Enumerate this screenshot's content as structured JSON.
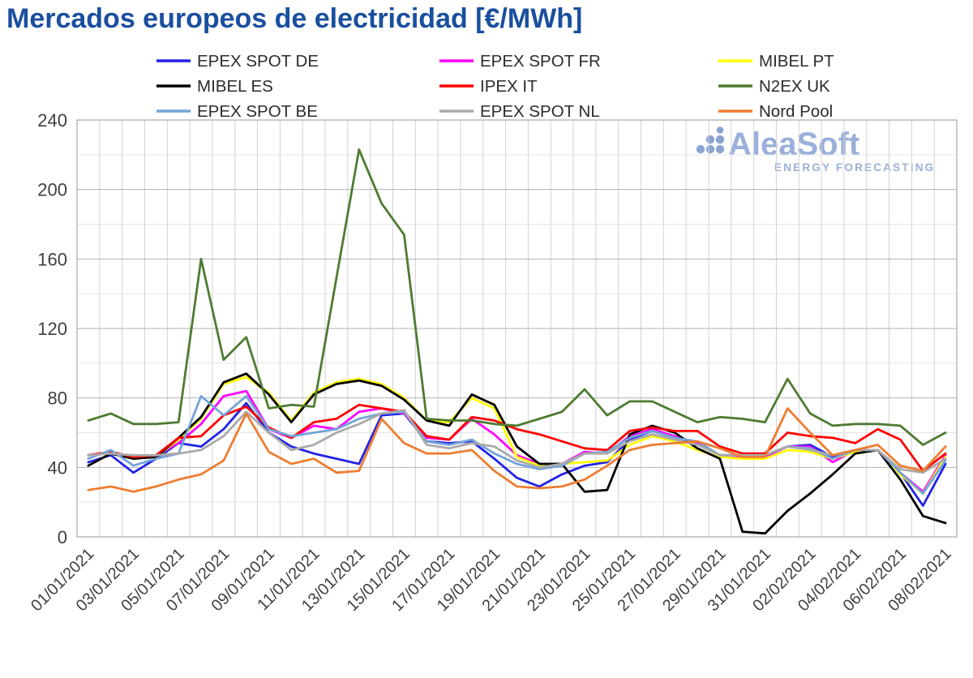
{
  "title": "Mercados europeos de electricidad [€/MWh]",
  "watermark": {
    "brand": "AleaSoft",
    "tagline": "ENERGY FORECASTING",
    "text_color": "#9ab0da",
    "dot_color": "#8aa3d2"
  },
  "axis_style": {
    "tick_color": "#3f3f3f",
    "major_grid_color": "#b2b2b2",
    "minor_grid_color": "#e4e4e4",
    "day_grid_color": "#d2d2d2",
    "border_color": "#a6a6a6"
  },
  "legend": {
    "text_color": "#2b2b2b",
    "order": [
      "EPEX SPOT DE",
      "EPEX SPOT FR",
      "MIBEL PT",
      "MIBEL ES",
      "IPEX IT",
      "N2EX UK",
      "EPEX SPOT BE",
      "EPEX SPOT NL",
      "Nord Pool"
    ]
  },
  "chart_data": {
    "type": "line",
    "title": "Mercados europeos de electricidad [€/MWh]",
    "xlabel": "",
    "ylabel": "",
    "ylim": [
      0,
      240
    ],
    "ytick_step": 40,
    "yticks": [
      0,
      40,
      80,
      120,
      160,
      200,
      240
    ],
    "grid": "minor horizontal every 20, vertical every day",
    "legend_position": "top, 3 columns",
    "x": [
      "01/01/2021",
      "02/01/2021",
      "03/01/2021",
      "04/01/2021",
      "05/01/2021",
      "06/01/2021",
      "07/01/2021",
      "08/01/2021",
      "09/01/2021",
      "10/01/2021",
      "11/01/2021",
      "12/01/2021",
      "13/01/2021",
      "14/01/2021",
      "15/01/2021",
      "16/01/2021",
      "17/01/2021",
      "18/01/2021",
      "19/01/2021",
      "20/01/2021",
      "21/01/2021",
      "22/01/2021",
      "23/01/2021",
      "24/01/2021",
      "25/01/2021",
      "26/01/2021",
      "27/01/2021",
      "28/01/2021",
      "29/01/2021",
      "30/01/2021",
      "31/01/2021",
      "01/02/2021",
      "02/02/2021",
      "03/02/2021",
      "04/02/2021",
      "05/02/2021",
      "06/02/2021",
      "07/02/2021",
      "08/02/2021"
    ],
    "x_tick_labels": [
      "01/01/2021",
      "03/01/2021",
      "05/01/2021",
      "07/01/2021",
      "09/01/2021",
      "11/01/2021",
      "13/01/2021",
      "15/01/2021",
      "17/01/2021",
      "19/01/2021",
      "21/01/2021",
      "23/01/2021",
      "25/01/2021",
      "27/01/2021",
      "29/01/2021",
      "31/01/2021",
      "02/02/2021",
      "04/02/2021",
      "06/02/2021",
      "08/02/2021"
    ],
    "series": [
      {
        "name": "EPEX SPOT DE",
        "color": "#2222e8",
        "values": [
          43,
          47,
          37,
          45,
          54,
          52,
          62,
          77,
          60,
          52,
          48,
          45,
          42,
          70,
          71,
          55,
          54,
          55,
          45,
          34,
          29,
          36,
          41,
          43,
          56,
          61,
          57,
          54,
          47,
          47,
          47,
          52,
          53,
          46,
          50,
          50,
          37,
          18,
          42
        ]
      },
      {
        "name": "EPEX SPOT FR",
        "color": "#ff00ff",
        "values": [
          47,
          49,
          46,
          47,
          54,
          65,
          81,
          84,
          62,
          57,
          64,
          62,
          72,
          74,
          71,
          57,
          56,
          68,
          59,
          47,
          42,
          42,
          49,
          48,
          58,
          62,
          58,
          54,
          47,
          46,
          46,
          52,
          52,
          43,
          50,
          50,
          37,
          26,
          47
        ]
      },
      {
        "name": "MIBEL PT",
        "color": "#ffff00",
        "values": [
          41,
          48,
          45,
          46,
          56,
          68,
          88,
          92,
          83,
          67,
          83,
          89,
          91,
          88,
          80,
          67,
          66,
          80,
          74,
          46,
          41,
          42,
          43,
          44,
          53,
          58,
          55,
          50,
          46,
          45,
          45,
          50,
          49,
          45,
          49,
          50,
          36,
          25,
          46
        ]
      },
      {
        "name": "MIBEL ES",
        "color": "#000000",
        "values": [
          41,
          48,
          45,
          46,
          57,
          69,
          89,
          94,
          82,
          66,
          82,
          88,
          90,
          87,
          79,
          67,
          64,
          82,
          76,
          52,
          42,
          42,
          26,
          27,
          59,
          64,
          60,
          51,
          45,
          3,
          2,
          15,
          25,
          36,
          48,
          50,
          33,
          12,
          8
        ]
      },
      {
        "name": "IPEX IT",
        "color": "#ff0000",
        "values": [
          47,
          49,
          46,
          47,
          57,
          58,
          70,
          75,
          63,
          57,
          66,
          68,
          76,
          74,
          72,
          58,
          56,
          69,
          67,
          62,
          59,
          55,
          51,
          50,
          61,
          63,
          61,
          61,
          52,
          48,
          48,
          60,
          58,
          57,
          54,
          62,
          56,
          38,
          48
        ]
      },
      {
        "name": "N2EX UK",
        "color": "#4e7b31",
        "values": [
          67,
          71,
          65,
          65,
          66,
          160,
          102,
          115,
          74,
          76,
          75,
          149,
          223,
          192,
          174,
          68,
          67,
          67,
          65,
          64,
          68,
          72,
          85,
          70,
          78,
          78,
          72,
          66,
          69,
          68,
          66,
          91,
          71,
          64,
          65,
          65,
          64,
          53,
          60
        ]
      },
      {
        "name": "EPEX SPOT BE",
        "color": "#74a4d8",
        "values": [
          45,
          50,
          41,
          45,
          48,
          81,
          70,
          81,
          62,
          58,
          60,
          62,
          68,
          71,
          72,
          55,
          53,
          56,
          48,
          42,
          39,
          41,
          48,
          49,
          57,
          61,
          57,
          55,
          47,
          47,
          47,
          52,
          51,
          45,
          50,
          50,
          37,
          25,
          44
        ]
      },
      {
        "name": "EPEX SPOT NL",
        "color": "#aaaaaa",
        "values": [
          47,
          48,
          47,
          47,
          48,
          50,
          58,
          72,
          60,
          50,
          53,
          60,
          65,
          71,
          73,
          53,
          51,
          54,
          52,
          44,
          40,
          42,
          48,
          48,
          55,
          59,
          56,
          53,
          47,
          47,
          47,
          52,
          50,
          47,
          50,
          50,
          39,
          37,
          45
        ]
      },
      {
        "name": "Nord Pool",
        "color": "#ed7d31",
        "values": [
          27,
          29,
          26,
          29,
          33,
          36,
          44,
          71,
          49,
          42,
          45,
          37,
          38,
          68,
          54,
          48,
          48,
          50,
          38,
          29,
          28,
          29,
          33,
          41,
          50,
          53,
          54,
          55,
          51,
          46,
          46,
          74,
          60,
          47,
          50,
          53,
          41,
          38,
          52
        ]
      }
    ]
  }
}
